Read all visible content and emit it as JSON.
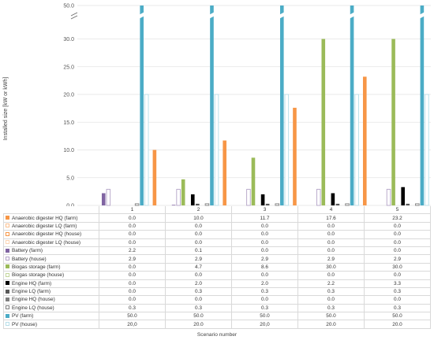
{
  "chart_data": {
    "type": "bar",
    "xlabel": "Scenario number",
    "ylabel": "Installed size [kW or kWh]",
    "ylim": [
      0,
      50
    ],
    "y_break": [
      35,
      50
    ],
    "yticks": [
      "0.0",
      "5.0",
      "10.0",
      "15.0",
      "20.0",
      "25.0",
      "30.0",
      "50.0"
    ],
    "grid": true,
    "categories": [
      "1",
      "2",
      "3",
      "4",
      "5"
    ],
    "series": [
      {
        "name": "Anaerobic digester HQ (farm)",
        "color": "#f79646",
        "style": "solid",
        "values": [
          0.0,
          10.0,
          11.7,
          17.6,
          23.2
        ],
        "labels": [
          "0.0",
          "10.0",
          "11.7",
          "17.6",
          "23.2"
        ]
      },
      {
        "name": "Anaerobic digester LQ (farm)",
        "color": "#fac090",
        "style": "outline",
        "values": [
          0.0,
          0.0,
          0.0,
          0.0,
          0.0
        ],
        "labels": [
          "0.0",
          "0.0",
          "0.0",
          "0.0",
          "0.0"
        ]
      },
      {
        "name": "Anaerobic digester HQ (house)",
        "color": "#f79646",
        "style": "outline",
        "values": [
          0.0,
          0.0,
          0.0,
          0.0,
          0.0
        ],
        "labels": [
          "0.0",
          "0.0",
          "0.0",
          "0.0",
          "0.0"
        ]
      },
      {
        "name": "Anaerobic digester LQ (house)",
        "color": "#fcd5b4",
        "style": "outline",
        "values": [
          0.0,
          0.0,
          0.0,
          0.0,
          0.0
        ],
        "labels": [
          "0.0",
          "0.0",
          "0.0",
          "0.0",
          "0.0"
        ]
      },
      {
        "name": "Battery (farm)",
        "color": "#8064a2",
        "style": "solid",
        "values": [
          2.2,
          0.1,
          0.0,
          0.0,
          0.0
        ],
        "labels": [
          "2.2",
          "0.1",
          "0.0",
          "0.0",
          "0.0"
        ]
      },
      {
        "name": "Battery (house)",
        "color": "#b3a2c7",
        "style": "outline",
        "values": [
          2.9,
          2.9,
          2.9,
          2.9,
          2.9
        ],
        "labels": [
          "2.9",
          "2.9",
          "2.9",
          "2.9",
          "2.9"
        ]
      },
      {
        "name": "Biogas storage (farm)",
        "color": "#9bbb59",
        "style": "solid",
        "values": [
          0.0,
          4.7,
          8.6,
          30.0,
          30.0
        ],
        "labels": [
          "0.0",
          "4.7",
          "8.6",
          "30.0",
          "30.0"
        ]
      },
      {
        "name": "Biogas storage (house)",
        "color": "#c3d69b",
        "style": "outline",
        "values": [
          0.0,
          0.0,
          0.0,
          0.0,
          0.0
        ],
        "labels": [
          "0.0",
          "0.0",
          "0.0",
          "0.0",
          "0.0"
        ]
      },
      {
        "name": "Engine HQ (farm)",
        "color": "#000000",
        "style": "solid",
        "values": [
          0.0,
          2.0,
          2.0,
          2.2,
          3.3
        ],
        "labels": [
          "0.0",
          "2.0",
          "2.0",
          "2.2",
          "3.3"
        ]
      },
      {
        "name": "Engine LQ (farm)",
        "color": "#595959",
        "style": "solid",
        "values": [
          0.0,
          0.3,
          0.3,
          0.3,
          0.3
        ],
        "labels": [
          "0.0",
          "0.3",
          "0.3",
          "0.3",
          "0.3"
        ]
      },
      {
        "name": "Engine HQ (house)",
        "color": "#7f7f7f",
        "style": "solid",
        "values": [
          0.0,
          0.0,
          0.0,
          0.0,
          0.0
        ],
        "labels": [
          "0.0",
          "0.0",
          "0.0",
          "0.0",
          "0.0"
        ]
      },
      {
        "name": "Engine LQ (house)",
        "color": "#7f7f7f",
        "style": "outline",
        "values": [
          0.3,
          0.3,
          0.3,
          0.3,
          0.3
        ],
        "labels": [
          "0.3",
          "0.3",
          "0.3",
          "0.3",
          "0.3"
        ]
      },
      {
        "name": "PV (farm)",
        "color": "#4bacc6",
        "style": "solid",
        "values": [
          50.0,
          50.0,
          50.0,
          50.0,
          50.0
        ],
        "labels": [
          "50.0",
          "50.0",
          "50.0",
          "50.0",
          "50.0"
        ]
      },
      {
        "name": "PV (house)",
        "color": "#b7dee8",
        "style": "outline",
        "values": [
          20.0,
          20.0,
          20.0,
          20.0,
          20.0
        ],
        "labels": [
          "20,0",
          "20.0",
          "20,0",
          "20.0",
          "20.0"
        ]
      }
    ]
  }
}
